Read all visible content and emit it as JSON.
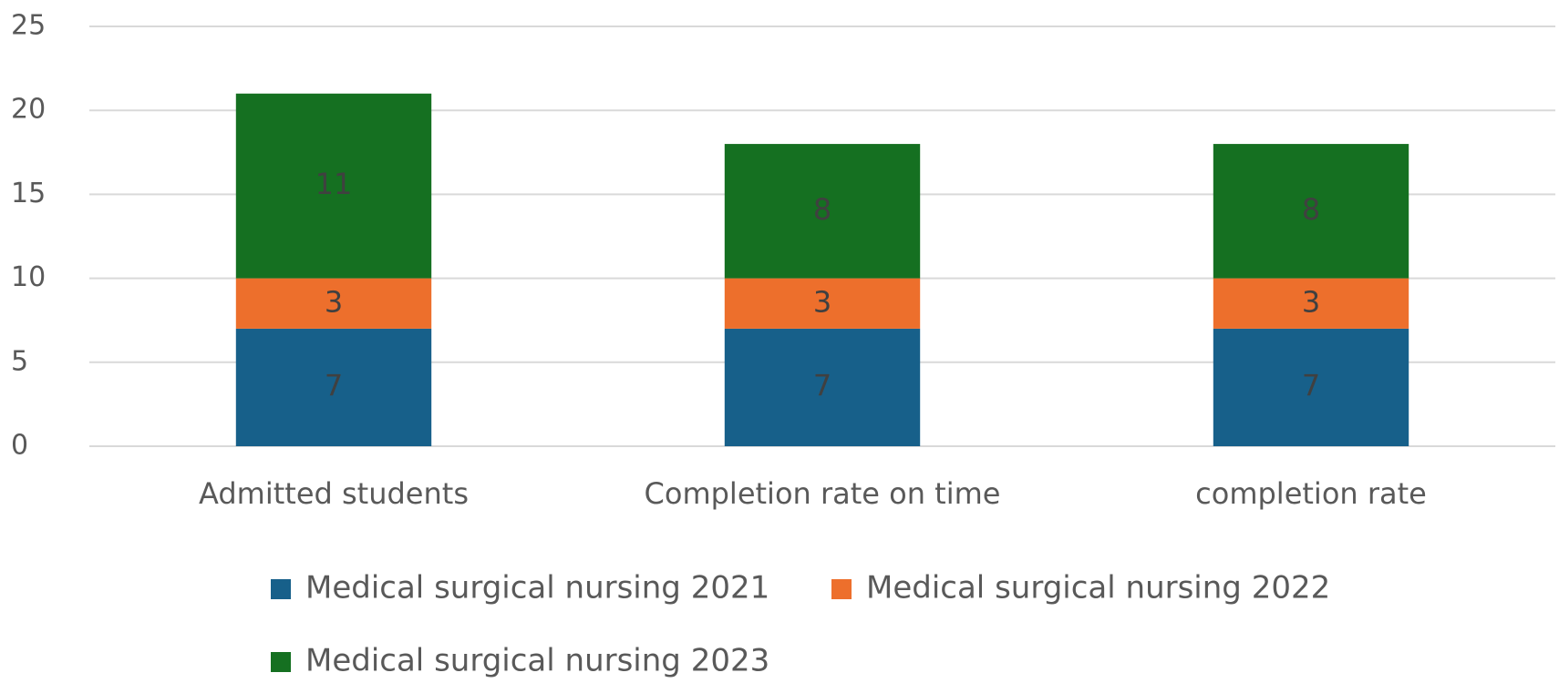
{
  "chart_data": {
    "type": "stacked_bar",
    "categories": [
      "Admitted students",
      "Completion rate on time",
      "completion rate"
    ],
    "series": [
      {
        "name": "Medical surgical nursing 2021",
        "color": "#17608a",
        "values": [
          7,
          7,
          7
        ]
      },
      {
        "name": "Medical surgical nursing 2022",
        "color": "#ed6f2c",
        "values": [
          3,
          3,
          3
        ]
      },
      {
        "name": "Medical surgical nursing 2023",
        "color": "#157021",
        "values": [
          11,
          8,
          8
        ]
      }
    ],
    "ylim": [
      0,
      25
    ],
    "yticks": [
      0,
      5,
      10,
      15,
      20,
      25
    ],
    "grid": true,
    "legend": "bottom"
  }
}
